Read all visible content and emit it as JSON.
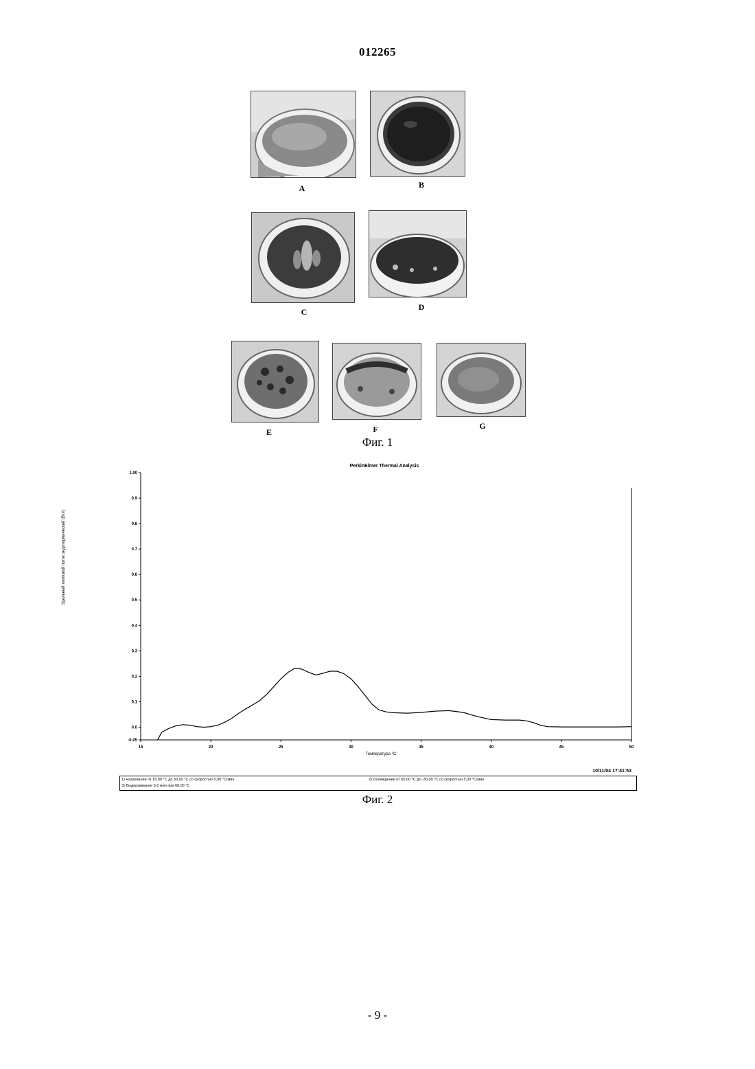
{
  "header": {
    "doc_number": "012265"
  },
  "figure1": {
    "panels": [
      {
        "label": "A",
        "id": "a"
      },
      {
        "label": "B",
        "id": "b"
      },
      {
        "label": "C",
        "id": "c"
      },
      {
        "label": "D",
        "id": "d"
      },
      {
        "label": "E",
        "id": "e"
      },
      {
        "label": "F",
        "id": "f"
      },
      {
        "label": "G",
        "id": "g"
      }
    ],
    "caption": "Фиг. 1"
  },
  "figure2": {
    "caption": "Фиг. 2",
    "timestamp": "10/11/04 17:41:53",
    "method_steps": [
      "1) Нагревание от 15,00 °С до 60,00 °С со скоростью 5,00 °С/мин",
      "2) Охлаждение от 60,00 °С до -30,00 °С со скоростью 5,00 °С/мин",
      "3) Выдерживание 5,0 мин при 60,00 °С"
    ]
  },
  "chart_data": {
    "type": "line",
    "title": "PerkinElmer Thermal Analysis",
    "xlabel": "Температура °С",
    "ylabel": "Удельный тепловой поток эндотермический (Вт/г)",
    "xlim": [
      15,
      50
    ],
    "ylim": [
      -0.05,
      1.0
    ],
    "x_ticks": [
      15,
      20,
      25,
      30,
      35,
      40,
      45,
      50
    ],
    "y_ticks": [
      -0.05,
      0.0,
      0.1,
      0.2,
      0.3,
      0.4,
      0.5,
      0.6,
      0.7,
      0.8,
      0.9,
      1.0
    ],
    "y_tick_labels": [
      "-0.05",
      "0.0",
      "0.1",
      "0.2",
      "0.3",
      "0.4",
      "0.5",
      "0.6",
      "0.7",
      "0.8",
      "0.9",
      "1.00"
    ],
    "grid": false,
    "series": [
      {
        "x": [
          16.2,
          16.5,
          17.0,
          17.5,
          18.0,
          18.5,
          19.0,
          19.5,
          20.0,
          20.5,
          21.0,
          21.5,
          22.0,
          22.5,
          23.0,
          23.5,
          24.0,
          24.5,
          25.0,
          25.5,
          26.0,
          26.5,
          27.0,
          27.5,
          28.0,
          28.5,
          29.0,
          29.5,
          30.0,
          30.5,
          31.0,
          31.5,
          32.0,
          32.5,
          33.0,
          34.0,
          35.0,
          36.0,
          37.0,
          38.0,
          39.0,
          40.0,
          41.0,
          42.0,
          42.5,
          43.0,
          43.5,
          44.0,
          45.0,
          46.0,
          47.0,
          48.0,
          49.0,
          50.0
        ],
        "y": [
          -0.05,
          -0.02,
          -0.005,
          0.005,
          0.01,
          0.008,
          0.002,
          0.0,
          0.002,
          0.008,
          0.02,
          0.035,
          0.055,
          0.072,
          0.088,
          0.105,
          0.13,
          0.16,
          0.19,
          0.215,
          0.232,
          0.228,
          0.215,
          0.205,
          0.212,
          0.22,
          0.22,
          0.21,
          0.19,
          0.16,
          0.125,
          0.09,
          0.068,
          0.06,
          0.057,
          0.055,
          0.058,
          0.063,
          0.065,
          0.058,
          0.042,
          0.03,
          0.028,
          0.028,
          0.025,
          0.018,
          0.008,
          0.002,
          0.001,
          0.001,
          0.001,
          0.001,
          0.001,
          0.002
        ]
      }
    ]
  },
  "footer": {
    "page_number": "- 9 -"
  }
}
